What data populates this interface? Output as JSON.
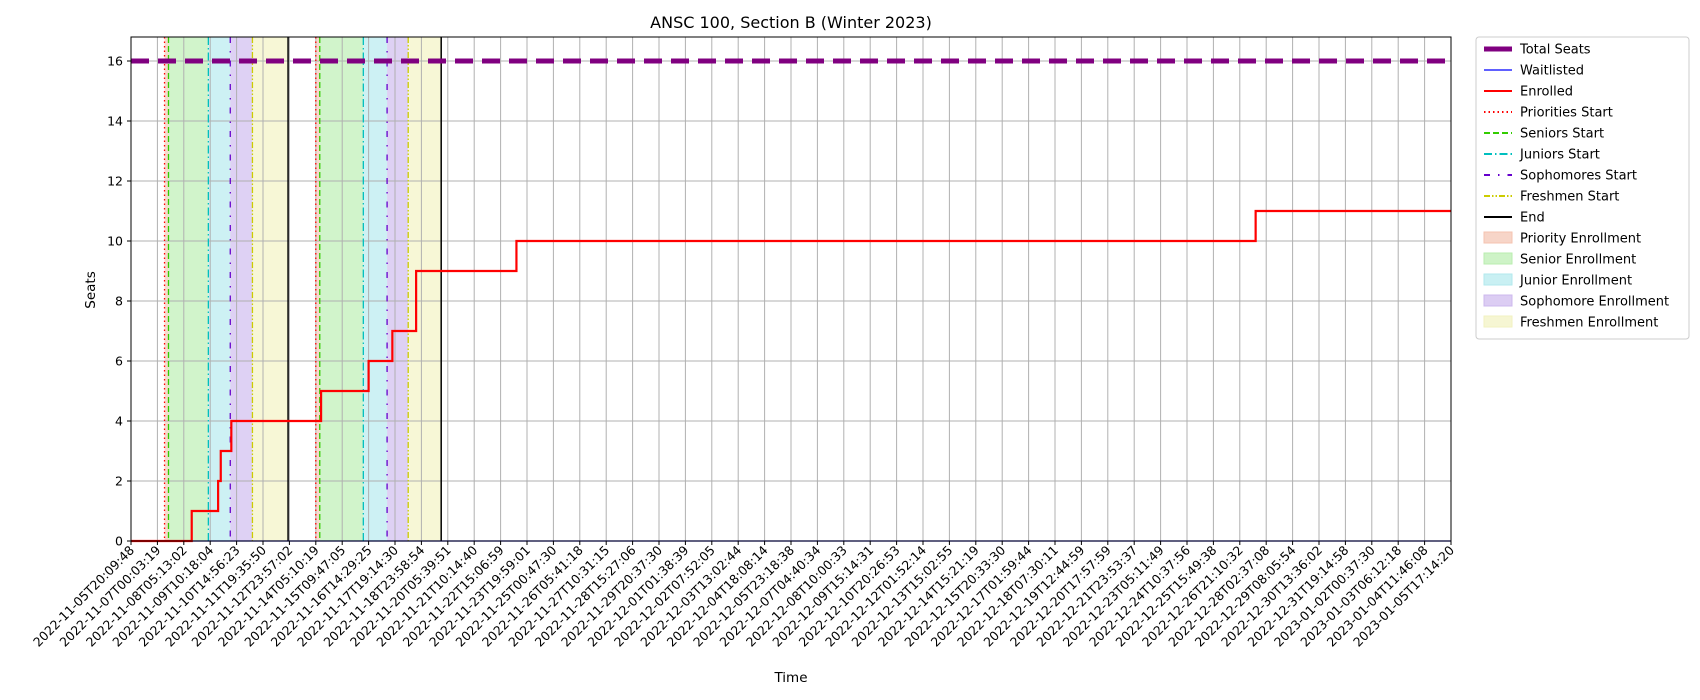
{
  "chart_data": {
    "type": "line",
    "title": "ANSC 100, Section B (Winter 2023)",
    "xlabel": "Time",
    "ylabel": "Seats",
    "ylim": [
      0,
      16.8
    ],
    "yticks": [
      0,
      2,
      4,
      6,
      8,
      10,
      12,
      14,
      16
    ],
    "grid": true,
    "legend_position": "outside-right",
    "colors": {
      "total": "#800080",
      "waitlisted": "#0000ff",
      "enrolled": "#ff0000",
      "priority": "#ff0000",
      "senior": "#33cc00",
      "junior": "#00bfbf",
      "sophomore": "#6600cc",
      "freshmen": "#cccc00",
      "end": "#000000",
      "priority_fill": "#f4c3b0",
      "senior_fill": "#b9eeaf",
      "junior_fill": "#b2e9ee",
      "sophomore_fill": "#cdb8ee",
      "freshmen_fill": "#f2f2c0"
    },
    "x_ticks": [
      "2022-11-05T20:09:48",
      "2022-11-07T00:03:19",
      "2022-11-08T05:13:02",
      "2022-11-09T10:18:04",
      "2022-11-10T14:56:23",
      "2022-11-11T19:35:50",
      "2022-11-12T23:57:02",
      "2022-11-14T05:10:19",
      "2022-11-15T09:47:05",
      "2022-11-16T14:29:25",
      "2022-11-17T19:14:30",
      "2022-11-18T23:58:54",
      "2022-11-20T05:39:51",
      "2022-11-21T10:14:40",
      "2022-11-22T15:06:59",
      "2022-11-23T19:59:01",
      "2022-11-25T00:47:30",
      "2022-11-26T05:41:18",
      "2022-11-27T10:31:15",
      "2022-11-28T15:27:06",
      "2022-11-29T20:37:30",
      "2022-12-01T01:38:39",
      "2022-12-02T07:52:05",
      "2022-12-03T13:02:44",
      "2022-12-04T18:08:14",
      "2022-12-05T23:18:38",
      "2022-12-07T04:40:34",
      "2022-12-08T10:00:33",
      "2022-12-09T15:14:31",
      "2022-12-10T20:26:53",
      "2022-12-12T01:52:14",
      "2022-12-13T15:02:55",
      "2022-12-14T15:21:19",
      "2022-12-15T20:33:30",
      "2022-12-17T01:59:44",
      "2022-12-18T07:30:11",
      "2022-12-19T12:44:59",
      "2022-12-20T17:57:59",
      "2022-12-21T23:53:37",
      "2022-12-23T05:11:49",
      "2022-12-24T10:37:56",
      "2022-12-25T15:49:38",
      "2022-12-26T21:10:32",
      "2022-12-28T02:37:08",
      "2022-12-29T08:05:54",
      "2022-12-30T13:36:02",
      "2022-12-31T19:14:58",
      "2023-01-02T00:37:30",
      "2023-01-03T06:12:18",
      "2023-01-04T11:46:08",
      "2023-01-05T17:14:20"
    ],
    "x_range": [
      0,
      50
    ],
    "series": [
      {
        "name": "Total Seats",
        "key": "total",
        "style": "dashed-thick",
        "points": [
          [
            0,
            16
          ],
          [
            50,
            16
          ]
        ]
      },
      {
        "name": "Waitlisted",
        "key": "waitlisted",
        "style": "solid-thin",
        "points": [
          [
            0,
            0
          ],
          [
            50,
            0
          ]
        ]
      },
      {
        "name": "Enrolled",
        "key": "enrolled",
        "style": "step",
        "points": [
          [
            0,
            0
          ],
          [
            2.3,
            0
          ],
          [
            2.3,
            1
          ],
          [
            3.3,
            1
          ],
          [
            3.3,
            2
          ],
          [
            3.4,
            2
          ],
          [
            3.4,
            3
          ],
          [
            3.8,
            3
          ],
          [
            3.8,
            4
          ],
          [
            7.2,
            4
          ],
          [
            7.2,
            5
          ],
          [
            9.0,
            5
          ],
          [
            9.0,
            6
          ],
          [
            9.9,
            6
          ],
          [
            9.9,
            7
          ],
          [
            10.8,
            7
          ],
          [
            10.8,
            9
          ],
          [
            14.6,
            9
          ],
          [
            14.6,
            10
          ],
          [
            42.6,
            10
          ],
          [
            42.6,
            11
          ],
          [
            50,
            11
          ]
        ]
      }
    ],
    "vertical_markers": [
      {
        "name": "Priorities Start",
        "key": "priority",
        "style": "dotted",
        "x": [
          1.27,
          7.0
        ]
      },
      {
        "name": "Seniors Start",
        "key": "senior",
        "style": "dashed",
        "x": [
          1.42,
          7.15
        ]
      },
      {
        "name": "Juniors Start",
        "key": "junior",
        "style": "dashdot",
        "x": [
          2.93,
          8.8
        ]
      },
      {
        "name": "Sophomores Start",
        "key": "sophomore",
        "style": "loosedashdot",
        "x": [
          3.76,
          9.7
        ]
      },
      {
        "name": "Freshmen Start",
        "key": "freshmen",
        "style": "dashdotdot",
        "x": [
          4.6,
          10.5
        ]
      },
      {
        "name": "End",
        "key": "end",
        "style": "solid",
        "x": [
          5.95,
          11.75
        ]
      }
    ],
    "shaded_regions": [
      {
        "name": "Priority Enrollment",
        "key": "priority_fill",
        "ranges": [
          [
            1.27,
            1.42
          ],
          [
            7.0,
            7.15
          ]
        ]
      },
      {
        "name": "Senior Enrollment",
        "key": "senior_fill",
        "ranges": [
          [
            1.42,
            2.93
          ],
          [
            7.15,
            8.8
          ]
        ]
      },
      {
        "name": "Junior Enrollment",
        "key": "junior_fill",
        "ranges": [
          [
            2.93,
            3.76
          ],
          [
            8.8,
            9.7
          ]
        ]
      },
      {
        "name": "Sophomore Enrollment",
        "key": "sophomore_fill",
        "ranges": [
          [
            3.76,
            4.6
          ],
          [
            9.7,
            10.5
          ]
        ]
      },
      {
        "name": "Freshmen Enrollment",
        "key": "freshmen_fill",
        "ranges": [
          [
            4.6,
            5.95
          ],
          [
            10.5,
            11.75
          ]
        ]
      }
    ],
    "legend": [
      {
        "label": "Total Seats",
        "kind": "line",
        "key": "total",
        "style": "thick"
      },
      {
        "label": "Waitlisted",
        "kind": "line",
        "key": "waitlisted",
        "style": "solid-thin"
      },
      {
        "label": "Enrolled",
        "kind": "line",
        "key": "enrolled",
        "style": "solid"
      },
      {
        "label": "Priorities Start",
        "kind": "line",
        "key": "priority",
        "style": "dotted"
      },
      {
        "label": "Seniors Start",
        "kind": "line",
        "key": "senior",
        "style": "dashed"
      },
      {
        "label": "Juniors Start",
        "kind": "line",
        "key": "junior",
        "style": "dashdot"
      },
      {
        "label": "Sophomores Start",
        "kind": "line",
        "key": "sophomore",
        "style": "loosedashdot"
      },
      {
        "label": "Freshmen Start",
        "kind": "line",
        "key": "freshmen",
        "style": "dashdotdot"
      },
      {
        "label": "End",
        "kind": "line",
        "key": "end",
        "style": "solid"
      },
      {
        "label": "Priority Enrollment",
        "kind": "patch",
        "key": "priority_fill"
      },
      {
        "label": "Senior Enrollment",
        "kind": "patch",
        "key": "senior_fill"
      },
      {
        "label": "Junior Enrollment",
        "kind": "patch",
        "key": "junior_fill"
      },
      {
        "label": "Sophomore Enrollment",
        "kind": "patch",
        "key": "sophomore_fill"
      },
      {
        "label": "Freshmen Enrollment",
        "kind": "patch",
        "key": "freshmen_fill"
      }
    ]
  }
}
